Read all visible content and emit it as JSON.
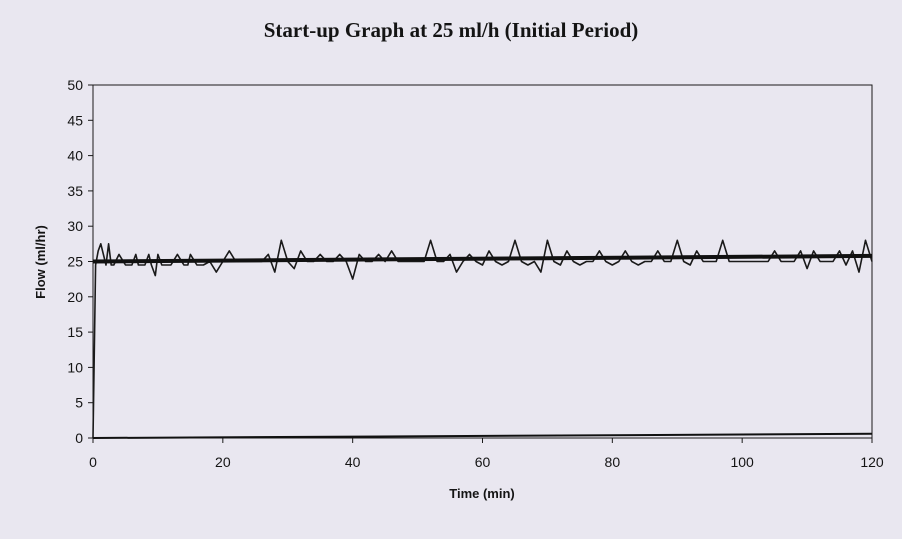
{
  "chart_data": {
    "type": "line",
    "title": "Start-up Graph at 25 ml/h (Initial Period)",
    "xlabel": "Time (min)",
    "ylabel": "Flow (ml/hr)",
    "xlim": [
      0,
      120
    ],
    "ylim": [
      0,
      50
    ],
    "x_ticks": [
      "0",
      "20",
      "40",
      "60",
      "80",
      "100",
      "120"
    ],
    "y_ticks": [
      "0",
      "5",
      "10",
      "15",
      "20",
      "25",
      "30",
      "35",
      "40",
      "45",
      "50"
    ],
    "grid": false,
    "legend": "none",
    "series": [
      {
        "style": "measured",
        "color": "#1a1a1a",
        "x": [
          0,
          0.4,
          0.8,
          1.2,
          1.6,
          2,
          2.4,
          2.8,
          3.2,
          4,
          5,
          6,
          6.6,
          7,
          8,
          8.6,
          9,
          9.6,
          10,
          10.6,
          11,
          12,
          13,
          14,
          14.6,
          15,
          16,
          17,
          18,
          19,
          20,
          21,
          22,
          23,
          24,
          25,
          26,
          27,
          28,
          29,
          30,
          31,
          32,
          33,
          34,
          35,
          36,
          37,
          38,
          39,
          40,
          41,
          42,
          43,
          44,
          45,
          46,
          47,
          48,
          49,
          50,
          51,
          52,
          53,
          54,
          55,
          56,
          57,
          58,
          59,
          60,
          61,
          62,
          63,
          64,
          65,
          66,
          67,
          68,
          69,
          70,
          71,
          72,
          73,
          74,
          75,
          76,
          77,
          78,
          79,
          80,
          81,
          82,
          83,
          84,
          85,
          86,
          87,
          88,
          89,
          90,
          91,
          92,
          93,
          94,
          95,
          96,
          97,
          98,
          99,
          100,
          101,
          102,
          103,
          104,
          105,
          106,
          107,
          108,
          109,
          110,
          111,
          112,
          113,
          114,
          115,
          116,
          117,
          118,
          119,
          120
        ],
        "y": [
          0,
          24.5,
          26.5,
          27.5,
          26,
          24.5,
          27.5,
          24.5,
          24.5,
          26,
          24.5,
          24.5,
          26,
          24.5,
          24.5,
          26,
          24.5,
          23,
          26,
          24.5,
          24.5,
          24.5,
          26,
          24.5,
          24.5,
          26,
          24.5,
          24.5,
          25,
          23.5,
          25,
          26.5,
          25,
          25,
          25,
          25,
          25,
          26,
          23.5,
          28,
          25,
          24,
          26.5,
          25,
          25,
          26,
          25,
          25,
          26,
          25,
          22.5,
          26,
          25,
          25,
          26,
          25,
          26.5,
          25,
          25,
          25,
          25,
          25,
          28,
          25,
          25,
          26,
          23.5,
          25,
          26,
          25,
          24.5,
          26.5,
          25,
          24.5,
          25,
          28,
          25,
          24.5,
          25,
          23.5,
          28,
          25,
          24.5,
          26.5,
          25,
          24.5,
          25,
          25,
          26.5,
          25,
          24.5,
          25,
          26.5,
          25,
          24.5,
          25,
          25,
          26.5,
          25,
          25,
          28,
          25,
          24.5,
          26.5,
          25,
          25,
          25,
          28,
          25,
          25,
          25,
          25,
          25,
          25,
          25,
          26.5,
          25,
          25,
          25,
          26.5,
          24,
          26.5,
          25,
          25,
          25,
          26.5,
          24.5,
          26.5,
          23.5,
          28,
          25
        ]
      },
      {
        "style": "trend",
        "color": "#111111",
        "x": [
          0,
          120
        ],
        "y": [
          25,
          25.8
        ]
      },
      {
        "style": "baseline",
        "color": "#111111",
        "x": [
          0,
          120
        ],
        "y": [
          0,
          0.6
        ]
      }
    ]
  }
}
